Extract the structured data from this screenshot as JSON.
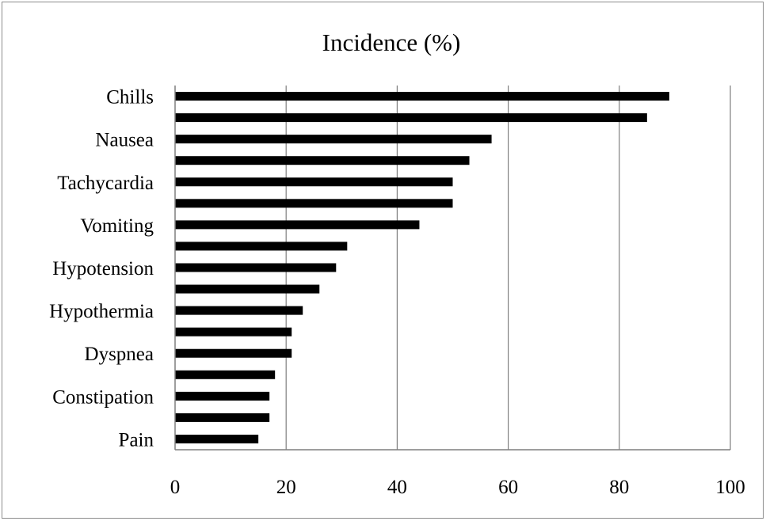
{
  "chart_data": {
    "type": "bar",
    "orientation": "horizontal",
    "title": "Incidence (%)",
    "xlabel": "",
    "ylabel": "",
    "xlim": [
      0,
      100
    ],
    "xticks": [
      "0",
      "20",
      "40",
      "60",
      "80",
      "100"
    ],
    "categories": [
      "Chills",
      "",
      "Nausea",
      "",
      "Tachycardia",
      "",
      "Vomiting",
      "",
      "Hypotension",
      "",
      "Hypothermia",
      "",
      "Dyspnea",
      "",
      "Constipation",
      "",
      "Pain"
    ],
    "values": [
      89,
      85,
      57,
      53,
      50,
      50,
      44,
      31,
      29,
      26,
      23,
      21,
      21,
      18,
      17,
      17,
      15
    ],
    "grid": "vertical",
    "legend": "none",
    "bar_color": "#000000",
    "grid_color": "#7f7f7f"
  }
}
